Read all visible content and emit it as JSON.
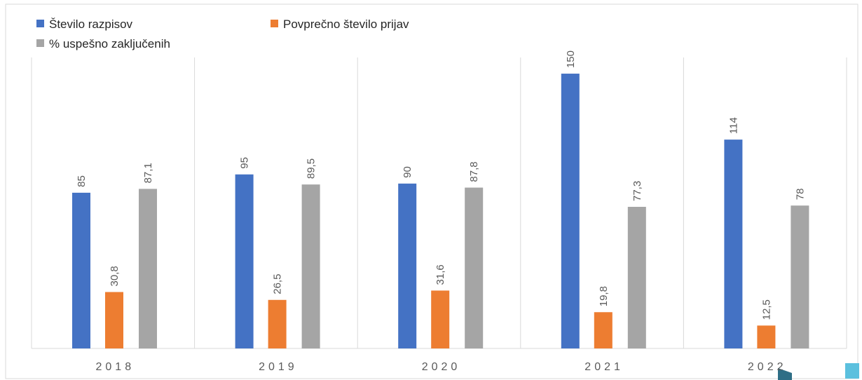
{
  "chart_data": {
    "type": "bar",
    "categories": [
      "2018",
      "2019",
      "2020",
      "2021",
      "2022"
    ],
    "series": [
      {
        "name": "Število razpisov",
        "color": "#4472c4",
        "values": [
          85,
          95,
          90,
          150,
          114
        ]
      },
      {
        "name": "Povprečno število prijav",
        "color": "#ed7d31",
        "values": [
          30.8,
          26.5,
          31.6,
          19.8,
          12.5
        ],
        "value_labels": [
          "30,8",
          "26,5",
          "31,6",
          "19,8",
          "12,5"
        ]
      },
      {
        "name": "% uspešno zaključenih",
        "color": "#a5a5a5",
        "values": [
          87.1,
          89.5,
          87.8,
          77.3,
          78
        ],
        "value_labels": [
          "87,1",
          "89,5",
          "87,8",
          "77,3",
          "78"
        ]
      }
    ],
    "legend": "top-left"
  }
}
